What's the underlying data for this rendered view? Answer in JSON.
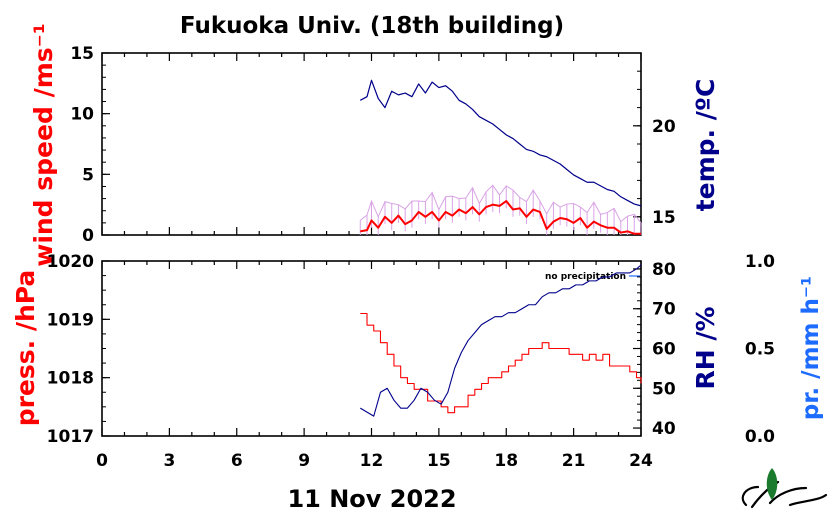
{
  "chart_data": [
    {
      "type": "line",
      "panel": "upper",
      "title": "Fukuoka Univ. (18th building)",
      "grid": false,
      "x_ticks": [
        0,
        3,
        6,
        9,
        12,
        15,
        18,
        21,
        24
      ],
      "y_left": {
        "label": "wind speed /ms⁻¹",
        "color": "#ff0000",
        "range": [
          0,
          15
        ],
        "ticks": [
          0,
          5,
          10,
          15
        ]
      },
      "y_right": {
        "label": "temp. /ºC",
        "color": "#00008b",
        "range": [
          14,
          24
        ],
        "ticks": [
          15,
          20
        ]
      },
      "series": [
        {
          "axis": "right",
          "color": "#00008b",
          "x": [
            11.5,
            11.8,
            12.0,
            12.3,
            12.6,
            12.9,
            13.2,
            13.5,
            13.8,
            14.1,
            14.4,
            14.7,
            15.0,
            15.3,
            15.6,
            15.9,
            16.2,
            16.5,
            16.8,
            17.1,
            17.4,
            17.7,
            18.0,
            18.3,
            18.6,
            18.9,
            19.2,
            19.5,
            19.8,
            20.1,
            20.4,
            20.7,
            21.0,
            21.3,
            21.6,
            21.9,
            22.2,
            22.5,
            22.8,
            23.1,
            23.4,
            23.7,
            24.0
          ],
          "y": [
            21.4,
            21.6,
            22.5,
            21.5,
            21.0,
            21.9,
            21.7,
            21.8,
            21.6,
            22.3,
            21.8,
            22.4,
            22.1,
            22.2,
            21.9,
            21.4,
            21.2,
            20.9,
            20.5,
            20.3,
            20.1,
            19.8,
            19.5,
            19.3,
            19.0,
            18.7,
            18.6,
            18.4,
            18.3,
            18.1,
            17.9,
            17.6,
            17.3,
            17.1,
            16.9,
            16.9,
            16.7,
            16.5,
            16.4,
            16.1,
            15.9,
            15.7,
            15.6
          ]
        },
        {
          "axis": "left",
          "color": "#ff0000",
          "x": [
            11.5,
            11.8,
            12.0,
            12.3,
            12.6,
            12.9,
            13.2,
            13.5,
            13.8,
            14.1,
            14.4,
            14.7,
            15.0,
            15.3,
            15.6,
            15.9,
            16.2,
            16.5,
            16.8,
            17.1,
            17.4,
            17.7,
            18.0,
            18.3,
            18.6,
            18.9,
            19.2,
            19.5,
            19.8,
            20.1,
            20.4,
            20.7,
            21.0,
            21.3,
            21.6,
            21.9,
            22.2,
            22.5,
            22.8,
            23.1,
            23.4,
            23.7,
            24.0
          ],
          "y": [
            0.3,
            0.4,
            1.2,
            0.6,
            1.5,
            1.0,
            1.6,
            0.9,
            1.2,
            1.9,
            1.5,
            1.9,
            1.2,
            1.9,
            1.6,
            2.1,
            1.8,
            2.3,
            1.7,
            2.3,
            2.5,
            2.4,
            2.8,
            2.1,
            2.2,
            1.5,
            2.1,
            1.9,
            0.5,
            1.1,
            1.4,
            1.3,
            1.0,
            1.4,
            0.6,
            1.1,
            0.8,
            0.6,
            0.6,
            0.2,
            0.3,
            0.1,
            0.1
          ]
        }
      ]
    },
    {
      "type": "line",
      "panel": "lower",
      "xlabel": "11 Nov 2022",
      "grid": false,
      "annotation": "no precipitation",
      "x_ticks": [
        0,
        3,
        6,
        9,
        12,
        15,
        18,
        21,
        24
      ],
      "y_left": {
        "label": "press. /hPa",
        "color": "#ff0000",
        "range": [
          1017,
          1020
        ],
        "ticks": [
          1017,
          1018,
          1019,
          1020
        ]
      },
      "y_right": {
        "label": "RH /%",
        "color": "#00008b",
        "range": [
          38,
          82
        ],
        "ticks": [
          40,
          50,
          60,
          70,
          80
        ]
      },
      "y_right2": {
        "label": "pr. /mm h⁻¹",
        "color": "#1e6cff",
        "range": [
          0,
          1
        ],
        "ticks": [
          "0.0",
          "0.5",
          "1.0"
        ]
      },
      "series": [
        {
          "axis": "left",
          "color": "#ff0000",
          "x": [
            11.5,
            11.8,
            12.1,
            12.4,
            12.7,
            13.0,
            13.3,
            13.6,
            13.9,
            14.2,
            14.5,
            14.8,
            15.1,
            15.4,
            15.7,
            16.0,
            16.3,
            16.6,
            16.9,
            17.2,
            17.5,
            17.8,
            18.1,
            18.4,
            18.7,
            19.0,
            19.3,
            19.6,
            19.9,
            20.2,
            20.5,
            20.8,
            21.1,
            21.4,
            21.7,
            22.0,
            22.3,
            22.6,
            22.9,
            23.2,
            23.5,
            23.8,
            24.0
          ],
          "y": [
            1019.1,
            1018.9,
            1018.8,
            1018.6,
            1018.4,
            1018.2,
            1018.0,
            1017.9,
            1017.8,
            1017.8,
            1017.6,
            1017.6,
            1017.5,
            1017.4,
            1017.5,
            1017.5,
            1017.7,
            1017.8,
            1017.9,
            1018.0,
            1018.0,
            1018.1,
            1018.2,
            1018.3,
            1018.4,
            1018.5,
            1018.5,
            1018.6,
            1018.5,
            1018.5,
            1018.5,
            1018.4,
            1018.4,
            1018.3,
            1018.4,
            1018.3,
            1018.4,
            1018.2,
            1018.2,
            1018.2,
            1018.1,
            1018.0,
            1017.9
          ]
        },
        {
          "axis": "right",
          "color": "#00008b",
          "x": [
            11.5,
            11.8,
            12.1,
            12.4,
            12.7,
            13.0,
            13.3,
            13.6,
            13.9,
            14.2,
            14.5,
            14.8,
            15.1,
            15.4,
            15.7,
            16.0,
            16.3,
            16.6,
            16.9,
            17.2,
            17.5,
            17.8,
            18.1,
            18.4,
            18.7,
            19.0,
            19.3,
            19.6,
            19.9,
            20.2,
            20.5,
            20.8,
            21.1,
            21.4,
            21.7,
            22.0,
            22.3,
            22.6,
            22.9,
            23.2,
            23.5,
            23.8,
            24.0
          ],
          "y": [
            45,
            44,
            43,
            49,
            50,
            47,
            45,
            45,
            47,
            50,
            49,
            47,
            46,
            49,
            55,
            59,
            62,
            64,
            66,
            67,
            68,
            68,
            69,
            69,
            70,
            71,
            71,
            73,
            74,
            74,
            75,
            75,
            76,
            76,
            77,
            77,
            78,
            78,
            79,
            79,
            79,
            80,
            81
          ]
        },
        {
          "axis": "right2",
          "color": "#1e6cff",
          "name": "",
          "x": [],
          "y": []
        }
      ]
    }
  ]
}
